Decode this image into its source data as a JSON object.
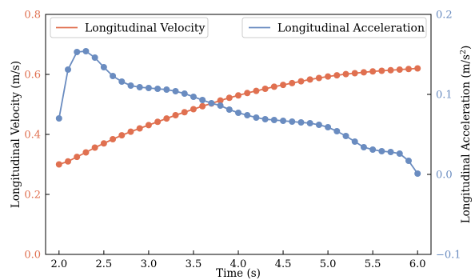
{
  "chart_data": {
    "type": "line",
    "xlabel": "Time (s)",
    "ylabel_left": "Longitudinal Velocity (m/s)",
    "ylabel_right_base": "Longitudinal Acceleration (m/s",
    "ylabel_right_sup": "2",
    "ylabel_right_end": ")",
    "xlim": [
      1.85,
      6.15
    ],
    "ylim_left": [
      0.0,
      0.8
    ],
    "ylim_right": [
      -0.1,
      0.2
    ],
    "xticks": [
      "2.0",
      "2.5",
      "3.0",
      "3.5",
      "4.0",
      "4.5",
      "5.0",
      "5.5",
      "6.0"
    ],
    "yticks_left": [
      "0.0",
      "0.2",
      "0.4",
      "0.6",
      "0.8"
    ],
    "yticks_right": [
      "−0.1",
      "0.0",
      "0.1",
      "0.2"
    ],
    "grid": false,
    "x": [
      2.0,
      2.1,
      2.2,
      2.3,
      2.4,
      2.5,
      2.6,
      2.7,
      2.8,
      2.9,
      3.0,
      3.1,
      3.2,
      3.3,
      3.4,
      3.5,
      3.6,
      3.7,
      3.8,
      3.9,
      4.0,
      4.1,
      4.2,
      4.3,
      4.4,
      4.5,
      4.6,
      4.7,
      4.8,
      4.9,
      5.0,
      5.1,
      5.2,
      5.3,
      5.4,
      5.5,
      5.6,
      5.7,
      5.8,
      5.9,
      6.0
    ],
    "series": [
      {
        "name": "Longitudinal Velocity",
        "axis": "left",
        "color": "#e07050",
        "values": [
          0.3,
          0.31,
          0.325,
          0.34,
          0.356,
          0.37,
          0.384,
          0.397,
          0.409,
          0.42,
          0.431,
          0.442,
          0.453,
          0.464,
          0.474,
          0.484,
          0.494,
          0.503,
          0.513,
          0.522,
          0.53,
          0.538,
          0.545,
          0.552,
          0.559,
          0.565,
          0.571,
          0.577,
          0.583,
          0.588,
          0.593,
          0.597,
          0.601,
          0.604,
          0.607,
          0.61,
          0.612,
          0.614,
          0.616,
          0.618,
          0.62
        ]
      },
      {
        "name": "Longitudinal Acceleration",
        "axis": "right",
        "color": "#6a8cc0",
        "values": [
          0.07,
          0.131,
          0.153,
          0.154,
          0.146,
          0.134,
          0.123,
          0.116,
          0.111,
          0.109,
          0.108,
          0.107,
          0.106,
          0.104,
          0.101,
          0.097,
          0.093,
          0.089,
          0.086,
          0.081,
          0.077,
          0.074,
          0.071,
          0.069,
          0.068,
          0.067,
          0.066,
          0.065,
          0.064,
          0.062,
          0.059,
          0.054,
          0.048,
          0.041,
          0.034,
          0.031,
          0.029,
          0.028,
          0.026,
          0.017,
          0.001
        ]
      }
    ],
    "left_axis_color": "#e07050",
    "right_axis_color": "#6a8cc0",
    "legends": [
      {
        "label": "Longitudinal Velocity",
        "position": "upper-left",
        "color": "#e07050"
      },
      {
        "label": "Longitudinal Acceleration",
        "position": "upper-right",
        "color": "#6a8cc0"
      }
    ]
  }
}
